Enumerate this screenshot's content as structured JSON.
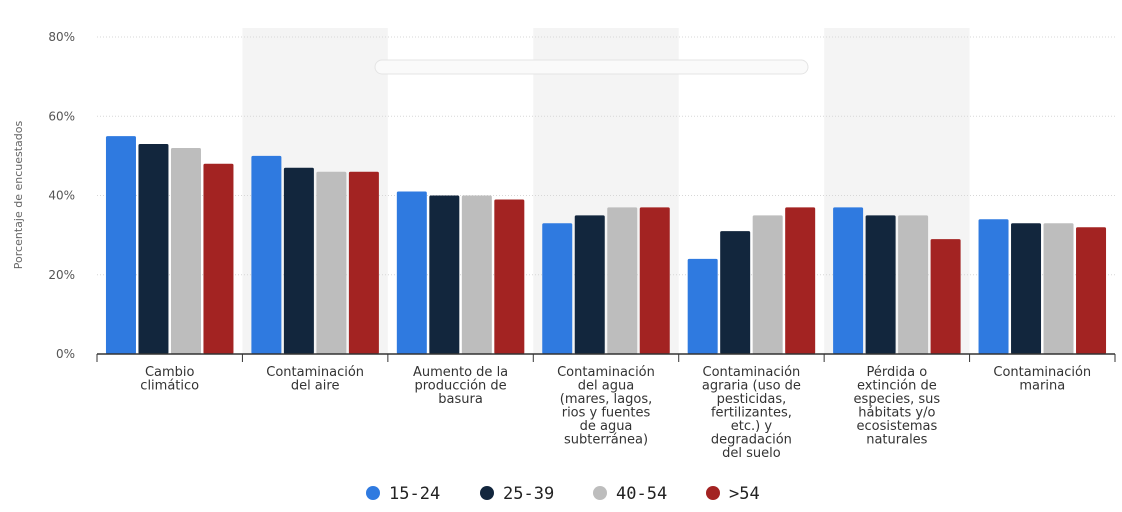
{
  "chart_data": {
    "type": "bar",
    "ylabel": "Porcentaje de encuestados",
    "ylim": [
      0,
      80
    ],
    "yticks": [
      "0%",
      "20%",
      "40%",
      "60%",
      "80%"
    ],
    "grid": true,
    "legend_position": "bottom-center",
    "categories": [
      [
        "Cambio",
        "climático"
      ],
      [
        "Contaminación",
        "del aire"
      ],
      [
        "Aumento de la",
        "producción de",
        "basura"
      ],
      [
        "Contaminación",
        "del agua",
        "(mares, lagos,",
        "rios y fuentes",
        "de agua",
        "subterránea)"
      ],
      [
        "Contaminación",
        "agraria (uso de",
        "pesticidas,",
        "fertilizantes,",
        "etc.) y",
        "degradación",
        "del suelo"
      ],
      [
        "Pérdida o",
        "extinción de",
        "especies, sus",
        "hábitats y/o",
        "ecosistemas",
        "naturales"
      ],
      [
        "Contaminación",
        "marina"
      ]
    ],
    "series": [
      {
        "name": "15-24",
        "color": "#2f7ae0",
        "values": [
          55,
          50,
          41,
          33,
          24,
          37,
          34
        ]
      },
      {
        "name": "25-39",
        "color": "#12263d",
        "values": [
          53,
          47,
          40,
          35,
          31,
          35,
          33
        ]
      },
      {
        "name": "40-54",
        "color": "#bdbdbd",
        "values": [
          52,
          46,
          40,
          37,
          35,
          35,
          33
        ]
      },
      {
        "name": ">54",
        "color": "#a32322",
        "values": [
          48,
          46,
          39,
          37,
          37,
          29,
          32
        ]
      }
    ]
  }
}
